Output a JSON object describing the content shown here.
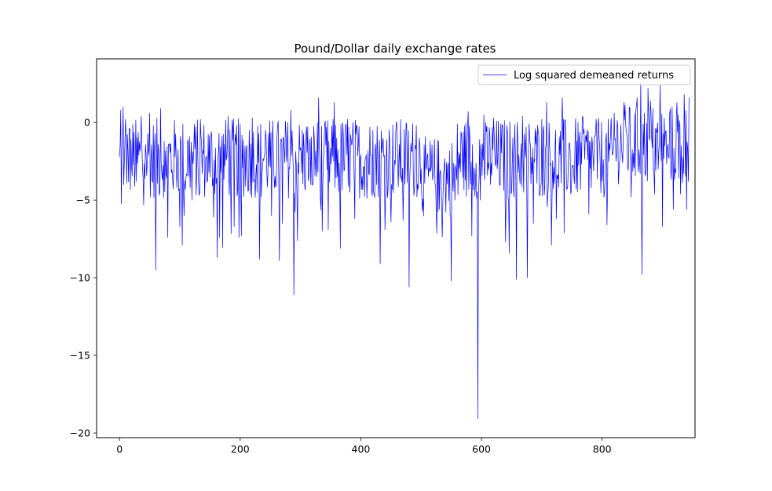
{
  "chart_data": {
    "type": "line",
    "title": "Pound/Dollar daily exchange rates",
    "xlabel": "",
    "ylabel": "",
    "xlim": [
      -38,
      954
    ],
    "ylim": [
      -20.3,
      4.1
    ],
    "xticks": [
      0,
      200,
      400,
      600,
      800
    ],
    "yticks": [
      0,
      -5,
      -10,
      -15,
      -20
    ],
    "xtick_labels": [
      "0",
      "200",
      "400",
      "600",
      "800"
    ],
    "ytick_labels": [
      "0",
      "−5",
      "−10",
      "−15",
      "−20"
    ],
    "grid": false,
    "legend_position": "top-right",
    "series": [
      {
        "name": "Log squared demeaned returns",
        "color": "#0000ff",
        "n_points": 945,
        "anchors": [
          {
            "x": 0,
            "y": -2.2
          },
          {
            "x": 2,
            "y": 0.8
          },
          {
            "x": 4,
            "y": -1.8
          },
          {
            "x": 6,
            "y": 1.0
          },
          {
            "x": 8,
            "y": -2.5
          },
          {
            "x": 10,
            "y": 0.2
          },
          {
            "x": 12,
            "y": -3.9
          },
          {
            "x": 16,
            "y": -0.4
          },
          {
            "x": 20,
            "y": -2.8
          },
          {
            "x": 28,
            "y": -3.8
          },
          {
            "x": 36,
            "y": 0.4
          },
          {
            "x": 40,
            "y": -5.3
          },
          {
            "x": 44,
            "y": -2.0
          },
          {
            "x": 50,
            "y": 0.6
          },
          {
            "x": 60,
            "y": -9.5
          },
          {
            "x": 68,
            "y": 0.9
          },
          {
            "x": 80,
            "y": -7.4
          },
          {
            "x": 90,
            "y": -3.0
          },
          {
            "x": 100,
            "y": -6.7
          },
          {
            "x": 104,
            "y": -7.9
          },
          {
            "x": 120,
            "y": -5.0
          },
          {
            "x": 134,
            "y": 0.2
          },
          {
            "x": 150,
            "y": -3.5
          },
          {
            "x": 156,
            "y": -6.1
          },
          {
            "x": 162,
            "y": -8.7
          },
          {
            "x": 166,
            "y": -7.4
          },
          {
            "x": 180,
            "y": 0.4
          },
          {
            "x": 190,
            "y": -6.7
          },
          {
            "x": 198,
            "y": -7.4
          },
          {
            "x": 202,
            "y": -7.3
          },
          {
            "x": 220,
            "y": 0.3
          },
          {
            "x": 232,
            "y": -8.8
          },
          {
            "x": 242,
            "y": -0.5
          },
          {
            "x": 252,
            "y": -6.0
          },
          {
            "x": 265,
            "y": -8.9
          },
          {
            "x": 270,
            "y": -6.5
          },
          {
            "x": 284,
            "y": 0.8
          },
          {
            "x": 289,
            "y": -11.1
          },
          {
            "x": 295,
            "y": -7.6
          },
          {
            "x": 310,
            "y": -0.3
          },
          {
            "x": 320,
            "y": -4.0
          },
          {
            "x": 330,
            "y": 1.6
          },
          {
            "x": 336,
            "y": -7.0
          },
          {
            "x": 346,
            "y": -6.9
          },
          {
            "x": 356,
            "y": 1.3
          },
          {
            "x": 366,
            "y": -8.1
          },
          {
            "x": 378,
            "y": 0.2
          },
          {
            "x": 390,
            "y": -6.2
          },
          {
            "x": 410,
            "y": -4.9
          },
          {
            "x": 420,
            "y": -0.5
          },
          {
            "x": 432,
            "y": -9.1
          },
          {
            "x": 440,
            "y": -6.9
          },
          {
            "x": 450,
            "y": -6.4
          },
          {
            "x": 460,
            "y": -0.3
          },
          {
            "x": 470,
            "y": -6.3
          },
          {
            "x": 480,
            "y": -10.6
          },
          {
            "x": 492,
            "y": -0.2
          },
          {
            "x": 500,
            "y": -3.0
          },
          {
            "x": 520,
            "y": -3.4
          },
          {
            "x": 530,
            "y": -5.6
          },
          {
            "x": 540,
            "y": -4.0
          },
          {
            "x": 550,
            "y": -10.2
          },
          {
            "x": 556,
            "y": -5.0
          },
          {
            "x": 570,
            "y": -0.6
          },
          {
            "x": 578,
            "y": 0.7
          },
          {
            "x": 584,
            "y": -7.3
          },
          {
            "x": 590,
            "y": -4.0
          },
          {
            "x": 594,
            "y": -19.1
          },
          {
            "x": 598,
            "y": -5.0
          },
          {
            "x": 604,
            "y": 0.5
          },
          {
            "x": 612,
            "y": -3.0
          },
          {
            "x": 620,
            "y": 0.3
          },
          {
            "x": 640,
            "y": -7.7
          },
          {
            "x": 646,
            "y": -8.4
          },
          {
            "x": 652,
            "y": -1.0
          },
          {
            "x": 658,
            "y": -10.1
          },
          {
            "x": 668,
            "y": 0.4
          },
          {
            "x": 676,
            "y": -10.0
          },
          {
            "x": 686,
            "y": -6.5
          },
          {
            "x": 700,
            "y": 0.2
          },
          {
            "x": 708,
            "y": 1.3
          },
          {
            "x": 716,
            "y": -7.9
          },
          {
            "x": 724,
            "y": -6.2
          },
          {
            "x": 734,
            "y": 1.6
          },
          {
            "x": 748,
            "y": -4.6
          },
          {
            "x": 758,
            "y": -1.2
          },
          {
            "x": 768,
            "y": 0.4
          },
          {
            "x": 778,
            "y": -5.9
          },
          {
            "x": 790,
            "y": 0.2
          },
          {
            "x": 800,
            "y": -3.8
          },
          {
            "x": 808,
            "y": -6.6
          },
          {
            "x": 820,
            "y": 0.6
          },
          {
            "x": 836,
            "y": 1.3
          },
          {
            "x": 848,
            "y": -4.8
          },
          {
            "x": 858,
            "y": 1.6
          },
          {
            "x": 864,
            "y": 2.6
          },
          {
            "x": 866,
            "y": -9.8
          },
          {
            "x": 876,
            "y": 2.2
          },
          {
            "x": 880,
            "y": 1.4
          },
          {
            "x": 890,
            "y": -0.4
          },
          {
            "x": 896,
            "y": 2.4
          },
          {
            "x": 904,
            "y": -1.5
          },
          {
            "x": 912,
            "y": 0.6
          },
          {
            "x": 918,
            "y": -5.6
          },
          {
            "x": 924,
            "y": 1.3
          },
          {
            "x": 930,
            "y": -4.6
          },
          {
            "x": 936,
            "y": 1.8
          },
          {
            "x": 940,
            "y": -5.6
          },
          {
            "x": 944,
            "y": 1.6
          }
        ]
      }
    ]
  }
}
